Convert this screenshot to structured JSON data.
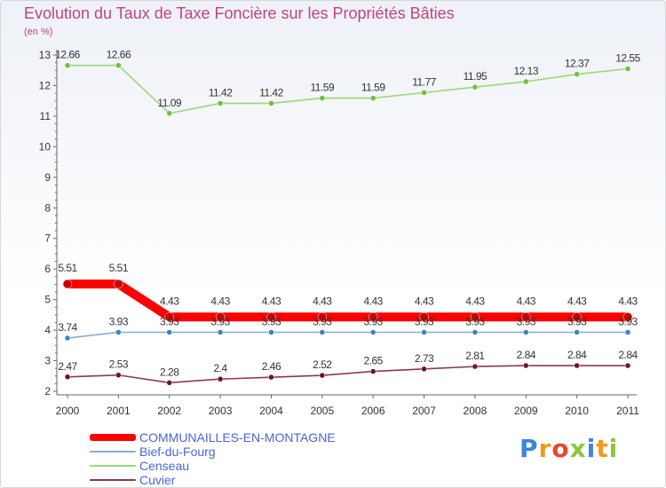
{
  "title": "Evolution du Taux de Taxe Foncière sur les Propriétés Bâties",
  "unit": "(en %)",
  "brand": {
    "letters": [
      "P",
      "r",
      "o",
      "x",
      "i",
      "t",
      "i"
    ],
    "colors": [
      "#3a86d8",
      "#f29a1f",
      "#e7462f",
      "#8cc63f",
      "#3a86d8",
      "#f29a1f",
      "#8cc63f"
    ]
  },
  "chart_data": {
    "type": "line",
    "title": "Evolution du Taux de Taxe Foncière sur les Propriétés Bâties",
    "ylabel": "(en %)",
    "xlabel": "",
    "x": [
      "2000",
      "2001",
      "2002",
      "2003",
      "2004",
      "2005",
      "2006",
      "2007",
      "2008",
      "2009",
      "2010",
      "2011"
    ],
    "ylim": [
      2,
      13
    ],
    "yticks": [
      "2",
      "3",
      "4",
      "5",
      "6",
      "7",
      "8",
      "9",
      "10",
      "11",
      "12",
      "13"
    ],
    "legend_position": "bottom-left",
    "series": [
      {
        "name": "Censeau",
        "color": "#9ad87a",
        "marker": "#6cc23a",
        "emphasis": false,
        "values": [
          12.66,
          12.66,
          11.09,
          11.42,
          11.42,
          11.59,
          11.59,
          11.77,
          11.95,
          12.13,
          12.37,
          12.55
        ],
        "labels": [
          "12.66",
          "12.66",
          "11.09",
          "11.42",
          "11.42",
          "11.59",
          "11.59",
          "11.77",
          "11.95",
          "12.13",
          "12.37",
          "12.55"
        ]
      },
      {
        "name": "COMMUNAILLES-EN-MONTAGNE",
        "color": "#ff0000",
        "marker": "#cc0000",
        "emphasis": true,
        "values": [
          5.51,
          5.51,
          4.43,
          4.43,
          4.43,
          4.43,
          4.43,
          4.43,
          4.43,
          4.43,
          4.43,
          4.43
        ],
        "labels": [
          "5.51",
          "5.51",
          "4.43",
          "4.43",
          "4.43",
          "4.43",
          "4.43",
          "4.43",
          "4.43",
          "4.43",
          "4.43",
          "4.43"
        ]
      },
      {
        "name": "Bief-du-Fourg",
        "color": "#86aed0",
        "marker": "#3e82c4",
        "emphasis": false,
        "values": [
          3.74,
          3.93,
          3.93,
          3.93,
          3.93,
          3.93,
          3.93,
          3.93,
          3.93,
          3.93,
          3.93,
          3.93
        ],
        "labels": [
          "3.74",
          "3.93",
          "3.93",
          "3.93",
          "3.93",
          "3.93",
          "3.93",
          "3.93",
          "3.93",
          "3.93",
          "3.93",
          "3.93"
        ]
      },
      {
        "name": "Cuvier",
        "color": "#8a3a4a",
        "marker": "#6e1520",
        "emphasis": false,
        "values": [
          2.47,
          2.53,
          2.28,
          2.4,
          2.46,
          2.52,
          2.65,
          2.73,
          2.81,
          2.84,
          2.84,
          2.84
        ],
        "labels": [
          "2.47",
          "2.53",
          "2.28",
          "2.4",
          "2.46",
          "2.52",
          "2.65",
          "2.73",
          "2.81",
          "2.84",
          "2.84",
          "2.84"
        ]
      }
    ]
  }
}
